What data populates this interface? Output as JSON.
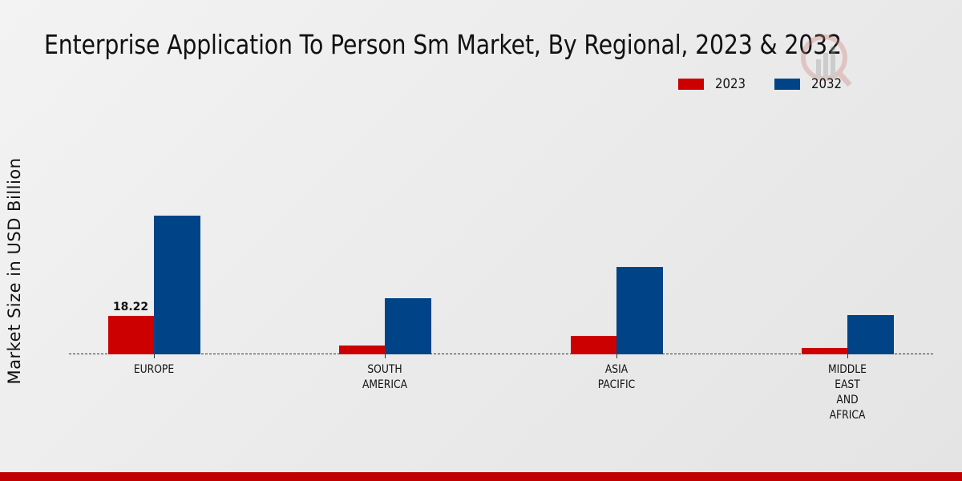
{
  "title": "Enterprise Application To Person Sm Market, By Regional, 2023 & 2032",
  "legend": [
    {
      "label": "2023",
      "color": "#cc0000"
    },
    {
      "label": "2032",
      "color": "#004488"
    }
  ],
  "y_axis_label": "Market Size in USD Billion",
  "footer_color": "#c00000",
  "chart_data": {
    "type": "bar",
    "title": "Enterprise Application To Person Sm Market, By Regional, 2023 & 2032",
    "xlabel": "",
    "ylabel": "Market Size in USD Billion",
    "categories": [
      "EUROPE",
      "SOUTH\nAMERICA",
      "ASIA\nPACIFIC",
      "MIDDLE\nEAST\nAND\nAFRICA"
    ],
    "series": [
      {
        "name": "2023",
        "color": "#cc0000",
        "values": [
          18.22,
          4.2,
          8.8,
          3.1
        ]
      },
      {
        "name": "2032",
        "color": "#004488",
        "values": [
          65.6,
          26.6,
          41.4,
          18.7
        ]
      }
    ],
    "data_labels": [
      {
        "series": "2023",
        "category": "EUROPE",
        "text": "18.22"
      }
    ],
    "ylim": [
      0,
      80
    ],
    "grid": false,
    "legend_position": "top-right",
    "baseline_style": "dashed"
  }
}
